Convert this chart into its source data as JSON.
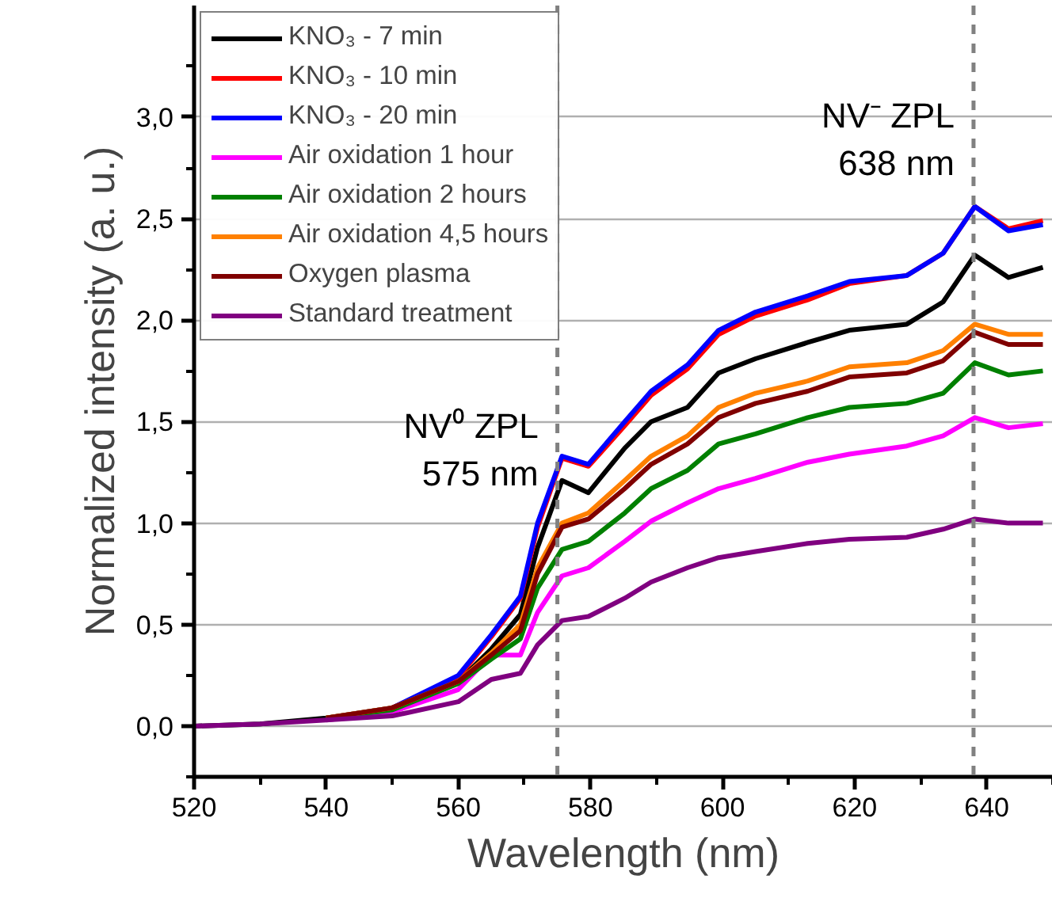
{
  "chart_data": {
    "type": "line",
    "xlabel": "Wavelength (nm)",
    "ylabel": "Normalized intensity (a. u.)",
    "x": [
      520,
      530,
      540,
      550,
      560,
      565,
      569.4,
      572,
      575.7,
      579.7,
      585.2,
      589.2,
      594.7,
      599.4,
      605,
      612.9,
      619.2,
      627.9,
      633.4,
      638.2,
      643.3,
      648.5
    ],
    "series": [
      {
        "name": "KNO₃ - 7 min",
        "color": "#000000",
        "values": [
          0,
          0.01,
          0.04,
          0.09,
          0.22,
          0.38,
          0.55,
          0.88,
          1.21,
          1.15,
          1.37,
          1.5,
          1.57,
          1.74,
          1.81,
          1.89,
          1.95,
          1.98,
          2.09,
          2.32,
          2.21,
          2.26
        ]
      },
      {
        "name": "KNO₃ - 10 min",
        "color": "#ff0000",
        "values": [
          null,
          null,
          null,
          0.09,
          0.24,
          0.44,
          0.63,
          0.98,
          1.32,
          1.28,
          1.48,
          1.63,
          1.76,
          1.93,
          2.02,
          2.1,
          2.18,
          2.22,
          2.33,
          2.56,
          2.45,
          2.49
        ]
      },
      {
        "name": "KNO₃ - 20 min",
        "color": "#0000ff",
        "values": [
          null,
          null,
          null,
          0.09,
          0.25,
          0.45,
          0.64,
          1.0,
          1.33,
          1.29,
          1.5,
          1.65,
          1.78,
          1.95,
          2.04,
          2.12,
          2.19,
          2.22,
          2.33,
          2.56,
          2.44,
          2.47
        ]
      },
      {
        "name": "Air oxidation 1 hour",
        "color": "#ff00ff",
        "values": [
          null,
          null,
          0.03,
          0.07,
          0.18,
          0.35,
          0.35,
          0.56,
          0.74,
          0.78,
          0.91,
          1.01,
          1.1,
          1.17,
          1.22,
          1.3,
          1.34,
          1.38,
          1.43,
          1.52,
          1.47,
          1.49
        ]
      },
      {
        "name": "Air oxidation 2 hours",
        "color": "#008000",
        "values": [
          null,
          null,
          0.04,
          0.08,
          0.21,
          0.33,
          0.43,
          0.68,
          0.87,
          0.91,
          1.05,
          1.17,
          1.26,
          1.39,
          1.44,
          1.52,
          1.57,
          1.59,
          1.64,
          1.79,
          1.73,
          1.75
        ]
      },
      {
        "name": "Air oxidation 4,5 hours",
        "color": "#ff8000",
        "values": [
          null,
          null,
          0.04,
          0.09,
          0.22,
          0.36,
          0.5,
          0.78,
          1.0,
          1.05,
          1.21,
          1.33,
          1.43,
          1.57,
          1.64,
          1.7,
          1.77,
          1.79,
          1.85,
          1.98,
          1.93,
          1.93
        ]
      },
      {
        "name": "Oxygen plasma",
        "color": "#800000",
        "values": [
          null,
          null,
          0.04,
          0.09,
          0.22,
          0.35,
          0.47,
          0.75,
          0.98,
          1.02,
          1.17,
          1.29,
          1.39,
          1.52,
          1.59,
          1.65,
          1.72,
          1.74,
          1.8,
          1.94,
          1.88,
          1.88
        ]
      },
      {
        "name": "Standard treatment",
        "color": "#800080",
        "values": [
          0,
          0.01,
          0.03,
          0.05,
          0.12,
          0.23,
          0.26,
          0.4,
          0.52,
          0.54,
          0.63,
          0.71,
          0.78,
          0.83,
          0.86,
          0.9,
          0.92,
          0.93,
          0.97,
          1.02,
          1.0,
          1.0
        ]
      }
    ],
    "xlim": [
      520,
      650
    ],
    "xticks": [
      520,
      540,
      560,
      580,
      600,
      620,
      640
    ],
    "ylim": [
      -0.25,
      3.55
    ],
    "yticks": [
      {
        "value": 0,
        "label": "0,0"
      },
      {
        "value": 0.5,
        "label": "0,5"
      },
      {
        "value": 1,
        "label": "1,0"
      },
      {
        "value": 1.5,
        "label": "1,5"
      },
      {
        "value": 2,
        "label": "2,0"
      },
      {
        "value": 2.5,
        "label": "2,5"
      },
      {
        "value": 3,
        "label": "3,0"
      }
    ],
    "ref_lines": [
      {
        "axis": "x",
        "value": 575,
        "label": "NV⁰ ZPL\n575 nm",
        "color": "#808080",
        "line_style": "dashed"
      },
      {
        "axis": "x",
        "value": 638,
        "label": "NV⁻ ZPL\n638 nm",
        "color": "#808080",
        "line_style": "dashed"
      }
    ],
    "grid": "y",
    "legend": "top left",
    "marker": "none",
    "line_style": "solid"
  }
}
